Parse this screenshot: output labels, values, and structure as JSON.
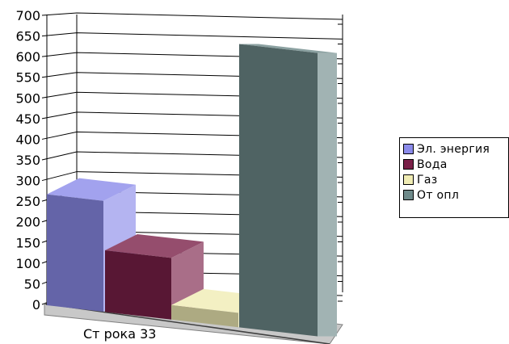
{
  "chart_data": {
    "type": "bar",
    "categories": [
      "Ст рока 33"
    ],
    "series": [
      {
        "name": "Эл. энергия",
        "values": [
          270
        ],
        "color": "#8b8bea"
      },
      {
        "name": "Вода",
        "values": [
          150
        ],
        "color": "#7a2048"
      },
      {
        "name": "Газ",
        "values": [
          35
        ],
        "color": "#f0ecb4"
      },
      {
        "name": "От опл",
        "values": [
          690
        ],
        "color": "#6e8a8a"
      }
    ],
    "yticks": [
      "0",
      "50",
      "100",
      "150",
      "200",
      "250",
      "300",
      "350",
      "400",
      "450",
      "500",
      "550",
      "600",
      "650",
      "700"
    ],
    "ylim": [
      0,
      700
    ],
    "grid": true,
    "legend_position": "right"
  }
}
